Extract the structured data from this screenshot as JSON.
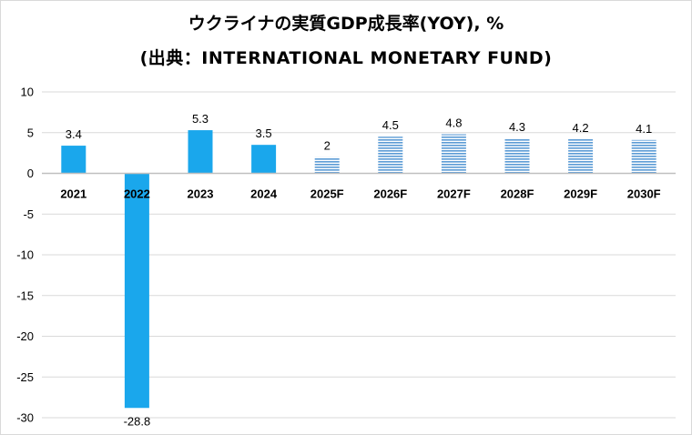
{
  "chart_data": {
    "type": "bar",
    "title": "ウクライナの実質GDP成長率(YOY), %",
    "subtitle": "(出典：INTERNATIONAL MONETARY FUND)",
    "xlabel": "",
    "ylabel": "",
    "categories": [
      "2021",
      "2022",
      "2023",
      "2024",
      "2025F",
      "2026F",
      "2027F",
      "2028F",
      "2029F",
      "2030F"
    ],
    "values": [
      3.4,
      -28.8,
      5.3,
      3.5,
      2,
      4.5,
      4.8,
      4.3,
      4.2,
      4.1
    ],
    "data_labels": [
      "3.4",
      "-28.8",
      "5.3",
      "3.5",
      "2",
      "4.5",
      "4.8",
      "4.3",
      "4.2",
      "4.1"
    ],
    "forecast": [
      false,
      false,
      false,
      false,
      true,
      true,
      true,
      true,
      true,
      true
    ],
    "ylim": [
      -30,
      10
    ],
    "yticks": [
      10,
      5,
      0,
      -5,
      -10,
      -15,
      -20,
      -25,
      -30
    ],
    "grid": true,
    "legend": "none",
    "colors": {
      "actual": "#1aa7ec",
      "forecast": "#5b9bd5",
      "grid": "#d9d9d9",
      "axis": "#bfbfbf"
    }
  }
}
